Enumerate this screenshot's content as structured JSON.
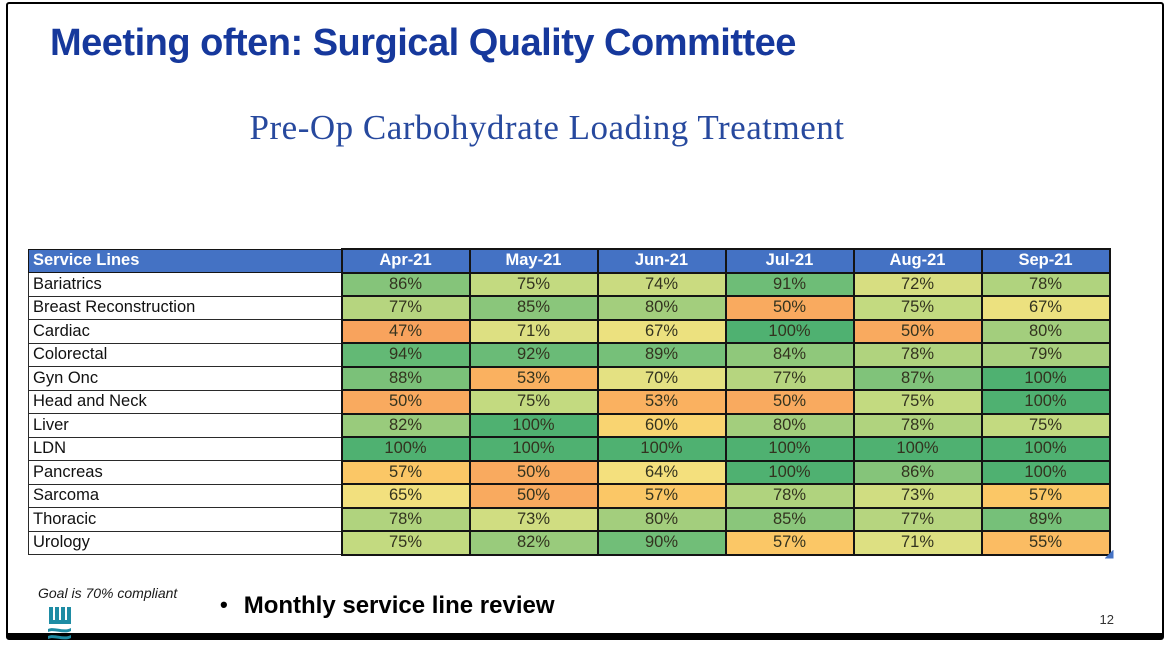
{
  "slide": {
    "title": "Meeting often: Surgical Quality Committee",
    "subtitle": "Pre-Op Carbohydrate Loading Treatment",
    "footnote": "Goal is 70% compliant",
    "bullet": "Monthly service line review",
    "page_number": "12"
  },
  "colors": {
    "title_text": "#16389C",
    "subtitle_text": "#27499E",
    "header_bg": "#4472C4",
    "header_text": "#FFFFFF",
    "fill_handle": "#4472C4",
    "logo": "#1E8CA4",
    "scale": [
      {
        "v": 47,
        "c": "#F8A35D"
      },
      {
        "v": 53,
        "c": "#FAB160"
      },
      {
        "v": 57,
        "c": "#FBC766"
      },
      {
        "v": 63,
        "c": "#F7E07C"
      },
      {
        "v": 70,
        "c": "#E4E182"
      },
      {
        "v": 75,
        "c": "#C3DA80"
      },
      {
        "v": 80,
        "c": "#A3CE7D"
      },
      {
        "v": 85,
        "c": "#8AC67B"
      },
      {
        "v": 90,
        "c": "#71BE78"
      },
      {
        "v": 100,
        "c": "#4FB171"
      }
    ]
  },
  "chart_data": {
    "type": "heatmap",
    "title": "Pre-Op Carbohydrate Loading Treatment",
    "row_header": "Service Lines",
    "columns": [
      "Apr-21",
      "May-21",
      "Jun-21",
      "Jul-21",
      "Aug-21",
      "Sep-21"
    ],
    "rows": [
      {
        "label": "Bariatrics",
        "values": [
          86,
          75,
          74,
          91,
          72,
          78
        ]
      },
      {
        "label": "Breast Reconstruction",
        "values": [
          77,
          85,
          80,
          50,
          75,
          67
        ]
      },
      {
        "label": "Cardiac",
        "values": [
          47,
          71,
          67,
          100,
          50,
          80
        ]
      },
      {
        "label": "Colorectal",
        "values": [
          94,
          92,
          89,
          84,
          78,
          79
        ]
      },
      {
        "label": "Gyn Onc",
        "values": [
          88,
          53,
          70,
          77,
          87,
          100
        ]
      },
      {
        "label": "Head and Neck",
        "values": [
          50,
          75,
          53,
          50,
          75,
          100
        ]
      },
      {
        "label": "Liver",
        "values": [
          82,
          100,
          60,
          80,
          78,
          75
        ]
      },
      {
        "label": "LDN",
        "values": [
          100,
          100,
          100,
          100,
          100,
          100
        ]
      },
      {
        "label": "Pancreas",
        "values": [
          57,
          50,
          64,
          100,
          86,
          100
        ]
      },
      {
        "label": "Sarcoma",
        "values": [
          65,
          50,
          57,
          78,
          73,
          57
        ]
      },
      {
        "label": "Thoracic",
        "values": [
          78,
          73,
          80,
          85,
          77,
          89
        ]
      },
      {
        "label": "Urology",
        "values": [
          75,
          82,
          90,
          57,
          71,
          55
        ]
      }
    ],
    "value_format": "percent",
    "color_scale_note": "orange=low, yellow=mid, green=high",
    "goal": "Goal is 70% compliant"
  }
}
